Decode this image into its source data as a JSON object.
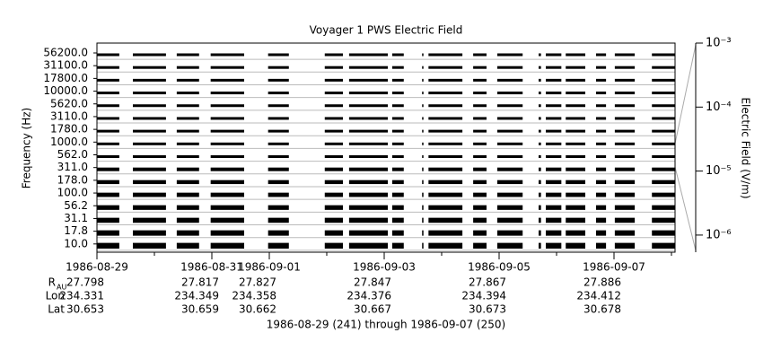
{
  "chart_data": {
    "type": "spectrogram",
    "title": "Voyager 1 PWS Electric Field",
    "y_label": "Frequency (Hz)",
    "y2_label": "Electric Field (V/m)",
    "x_label": "1986-08-29 (241) through 1986-09-07 (250)",
    "channels": [
      "56200.0",
      "31100.0",
      "17800.0",
      "10000.0",
      "5620.0",
      "3110.0",
      "1780.0",
      "1000.0",
      "562.0",
      "311.0",
      "178.0",
      "100.0",
      "56.2",
      "31.1",
      "17.8",
      "10.0"
    ],
    "xlim": [
      "1986-08-29",
      "1986-09-08T01:30"
    ],
    "xticks": [
      "1986-08-29",
      "1986-08-31",
      "1986-09-01",
      "1986-09-03",
      "1986-09-05",
      "1986-09-07"
    ],
    "segments": [
      [
        "1986-08-29T00:00",
        "1986-08-29T09:20"
      ],
      [
        "1986-08-29T15:00",
        "1986-08-30T04:50"
      ],
      [
        "1986-08-30T09:20",
        "1986-08-30T18:40"
      ],
      [
        "1986-08-30T23:30",
        "1986-08-31T13:30"
      ],
      [
        "1986-08-31T23:30",
        "1986-09-01T08:10"
      ],
      [
        "1986-09-01T23:10",
        "1986-09-02T06:45"
      ],
      [
        "1986-09-02T09:20",
        "1986-09-03T01:30"
      ],
      [
        "1986-09-03T03:20",
        "1986-09-03T08:10"
      ],
      [
        "1986-09-03T15:50",
        "1986-09-03T16:20"
      ],
      [
        "1986-09-03T18:30",
        "1986-09-04T08:40"
      ],
      [
        "1986-09-04T13:10",
        "1986-09-04T18:45"
      ],
      [
        "1986-09-04T23:15",
        "1986-09-05T09:50"
      ],
      [
        "1986-09-05T16:30",
        "1986-09-05T17:30"
      ],
      [
        "1986-09-05T19:30",
        "1986-09-06T02:00"
      ],
      [
        "1986-09-06T03:50",
        "1986-09-06T12:00"
      ],
      [
        "1986-09-06T16:30",
        "1986-09-06T20:40"
      ],
      [
        "1986-09-07T00:20",
        "1986-09-07T08:40"
      ],
      [
        "1986-09-07T15:50",
        "1986-09-08T01:30"
      ]
    ],
    "color": "#000000",
    "y2lim": [
      5.4e-07,
      0.001
    ],
    "y2log": true,
    "y2ticks": [
      {
        "value": 0.001,
        "label": "10⁻³"
      },
      {
        "value": 0.0001,
        "label": "10⁻⁴"
      },
      {
        "value": 1e-05,
        "label": "10⁻⁵"
      },
      {
        "value": 1e-06,
        "label": "10⁻⁶"
      }
    ],
    "ephemeris": [
      {
        "label": "R",
        "sub": "AU",
        "values": [
          27.798,
          27.817,
          27.827,
          27.847,
          27.867,
          27.886
        ]
      },
      {
        "label": "Lon",
        "values": [
          234.331,
          234.349,
          234.358,
          234.376,
          234.394,
          234.412
        ]
      },
      {
        "label": "Lat",
        "values": [
          30.653,
          30.659,
          30.662,
          30.667,
          30.673,
          30.678
        ]
      }
    ]
  }
}
